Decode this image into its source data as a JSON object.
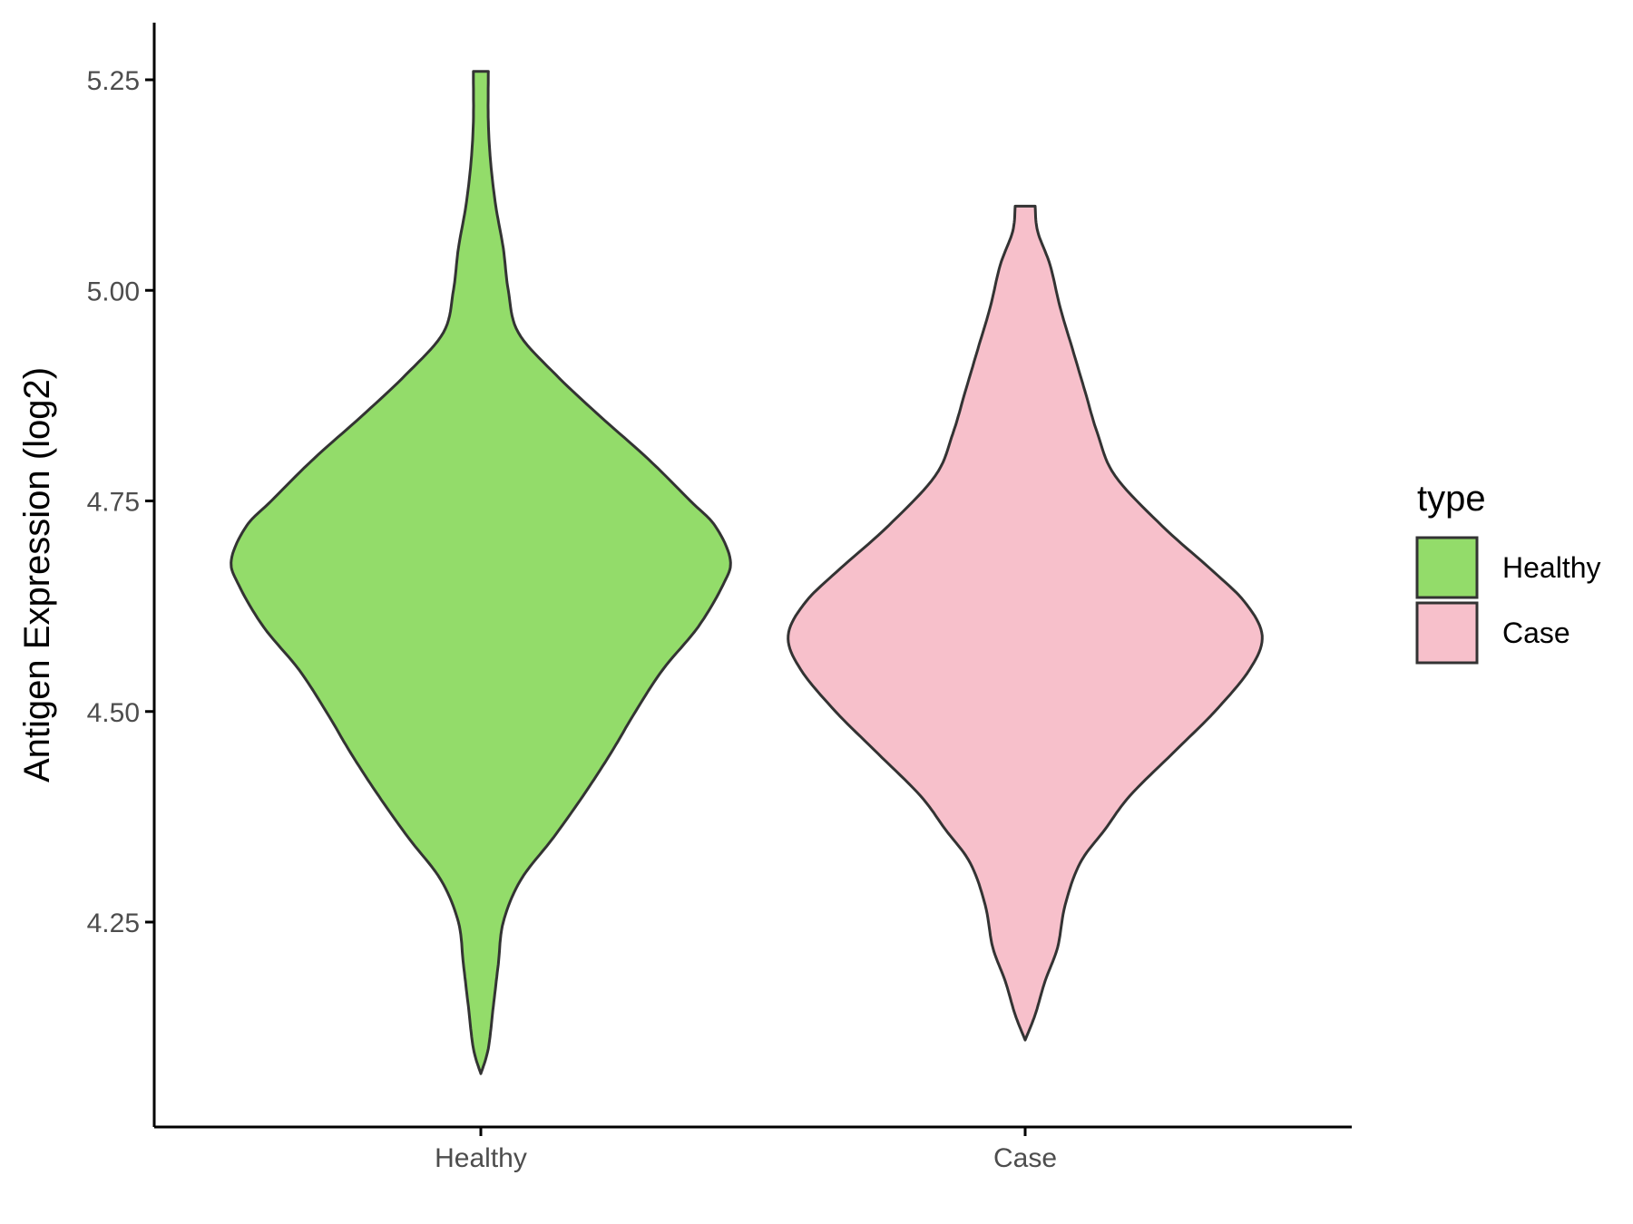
{
  "chart_data": {
    "type": "violin",
    "title": "",
    "xlabel": "",
    "ylabel": "Antigen Expression (log2)",
    "categories": [
      "Healthy",
      "Case"
    ],
    "ylim": [
      4.03,
      5.32
    ],
    "y_ticks": [
      4.25,
      4.5,
      4.75,
      5.0,
      5.25
    ],
    "y_tick_labels": [
      "4.25",
      "4.50",
      "4.75",
      "5.00",
      "5.25"
    ],
    "grid": false,
    "legend": {
      "title": "type",
      "position": "right",
      "entries": [
        "Healthy",
        "Case"
      ]
    },
    "series": [
      {
        "name": "Healthy",
        "color": "#93DC6A",
        "min": 4.07,
        "max": 5.26,
        "density_profile": [
          [
            4.07,
            0.0
          ],
          [
            4.1,
            0.03
          ],
          [
            4.15,
            0.05
          ],
          [
            4.2,
            0.07
          ],
          [
            4.25,
            0.09
          ],
          [
            4.3,
            0.16
          ],
          [
            4.35,
            0.29
          ],
          [
            4.4,
            0.41
          ],
          [
            4.45,
            0.52
          ],
          [
            4.5,
            0.62
          ],
          [
            4.55,
            0.73
          ],
          [
            4.6,
            0.87
          ],
          [
            4.65,
            0.97
          ],
          [
            4.68,
            1.0
          ],
          [
            4.72,
            0.94
          ],
          [
            4.75,
            0.84
          ],
          [
            4.8,
            0.67
          ],
          [
            4.85,
            0.48
          ],
          [
            4.9,
            0.3
          ],
          [
            4.95,
            0.15
          ],
          [
            5.0,
            0.11
          ],
          [
            5.05,
            0.09
          ],
          [
            5.1,
            0.06
          ],
          [
            5.15,
            0.04
          ],
          [
            5.2,
            0.03
          ],
          [
            5.26,
            0.03
          ]
        ]
      },
      {
        "name": "Case",
        "color": "#F7C0CB",
        "min": 4.11,
        "max": 5.1,
        "density_profile": [
          [
            4.11,
            0.0
          ],
          [
            4.14,
            0.04
          ],
          [
            4.18,
            0.08
          ],
          [
            4.22,
            0.13
          ],
          [
            4.27,
            0.16
          ],
          [
            4.32,
            0.22
          ],
          [
            4.36,
            0.32
          ],
          [
            4.4,
            0.42
          ],
          [
            4.45,
            0.59
          ],
          [
            4.5,
            0.76
          ],
          [
            4.55,
            0.9
          ],
          [
            4.59,
            0.95
          ],
          [
            4.63,
            0.88
          ],
          [
            4.67,
            0.74
          ],
          [
            4.72,
            0.55
          ],
          [
            4.78,
            0.36
          ],
          [
            4.83,
            0.29
          ],
          [
            4.88,
            0.24
          ],
          [
            4.93,
            0.19
          ],
          [
            4.98,
            0.14
          ],
          [
            5.03,
            0.1
          ],
          [
            5.07,
            0.05
          ],
          [
            5.1,
            0.04
          ]
        ]
      }
    ]
  }
}
